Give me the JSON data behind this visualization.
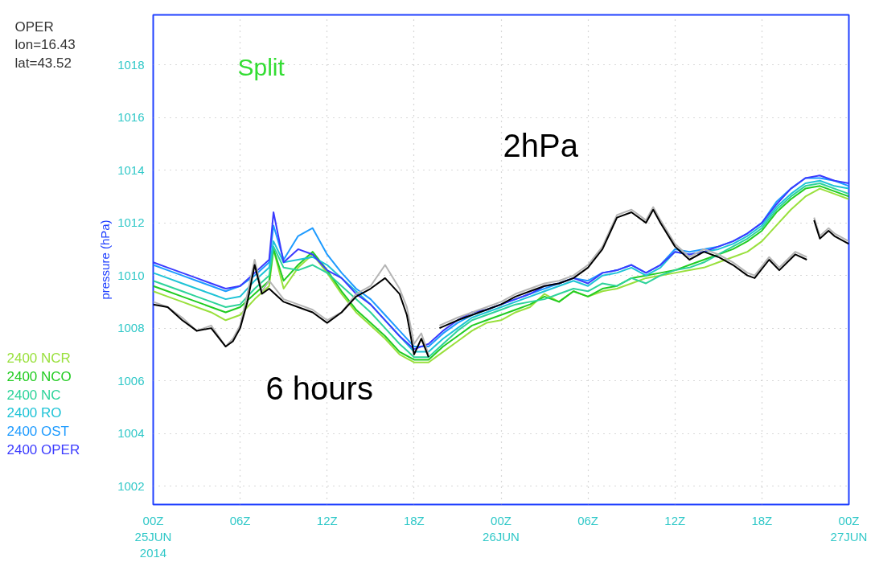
{
  "chart_data": {
    "type": "line",
    "title": "Split",
    "ylabel": "pressure (hPa)",
    "annotations": [
      "OPER",
      "lon=16.43",
      "lat=43.52",
      "2hPa",
      "6 hours"
    ],
    "x": [
      "2014-06-25T00:00",
      "2014-06-25T01:00",
      "2014-06-25T02:00",
      "2014-06-25T03:00",
      "2014-06-25T04:00",
      "2014-06-25T05:00",
      "2014-06-25T06:00",
      "2014-06-25T07:00",
      "2014-06-25T08:00",
      "2014-06-25T08:18",
      "2014-06-25T09:00",
      "2014-06-25T10:00",
      "2014-06-25T11:00",
      "2014-06-25T12:00",
      "2014-06-25T13:00",
      "2014-06-25T14:00",
      "2014-06-25T15:00",
      "2014-06-25T16:00",
      "2014-06-25T17:00",
      "2014-06-25T18:00",
      "2014-06-25T19:00",
      "2014-06-25T20:00",
      "2014-06-25T21:00",
      "2014-06-25T22:00",
      "2014-06-25T23:00",
      "2014-06-26T00:00",
      "2014-06-26T01:00",
      "2014-06-26T02:00",
      "2014-06-26T03:00",
      "2014-06-26T04:00",
      "2014-06-26T05:00",
      "2014-06-26T06:00",
      "2014-06-26T07:00",
      "2014-06-26T08:00",
      "2014-06-26T09:00",
      "2014-06-26T10:00",
      "2014-06-26T11:00",
      "2014-06-26T12:00",
      "2014-06-26T13:00",
      "2014-06-26T14:00",
      "2014-06-26T15:00",
      "2014-06-26T16:00",
      "2014-06-26T17:00",
      "2014-06-26T18:00",
      "2014-06-26T19:00",
      "2014-06-26T20:00",
      "2014-06-26T21:00",
      "2014-06-26T22:00",
      "2014-06-26T23:00",
      "2014-06-27T00:00"
    ],
    "xlim": [
      "2014-06-25T00:00",
      "2014-06-27T00:00"
    ],
    "xticks": [
      {
        "value": "2014-06-25T00:00",
        "label": "00Z\n25JUN\n2014"
      },
      {
        "value": "2014-06-25T06:00",
        "label": "06Z"
      },
      {
        "value": "2014-06-25T12:00",
        "label": "12Z"
      },
      {
        "value": "2014-06-25T18:00",
        "label": "18Z"
      },
      {
        "value": "2014-06-26T00:00",
        "label": "00Z\n26JUN"
      },
      {
        "value": "2014-06-26T06:00",
        "label": "06Z"
      },
      {
        "value": "2014-06-26T12:00",
        "label": "12Z"
      },
      {
        "value": "2014-06-26T18:00",
        "label": "18Z"
      },
      {
        "value": "2014-06-27T00:00",
        "label": "00Z\n27JUN"
      }
    ],
    "ylim": [
      1001.3,
      1019.9
    ],
    "yticks": [
      1002,
      1004,
      1006,
      1008,
      1010,
      1012,
      1014,
      1016,
      1018
    ],
    "grid": true,
    "line_style": "solid",
    "series": [
      {
        "name": "2400 NCR",
        "color": "#99e03c",
        "values": [
          1009.4,
          1009.2,
          1009.0,
          1008.8,
          1008.6,
          1008.3,
          1008.5,
          1009.1,
          1009.6,
          1011.0,
          1009.5,
          1010.3,
          1010.8,
          1010.1,
          1009.3,
          1008.6,
          1008.1,
          1007.6,
          1007.0,
          1006.7,
          1006.7,
          1007.1,
          1007.5,
          1007.9,
          1008.2,
          1008.3,
          1008.6,
          1008.8,
          1009.3,
          1009.0,
          1009.4,
          1009.2,
          1009.4,
          1009.5,
          1009.7,
          1009.9,
          1010.0,
          1010.1,
          1010.2,
          1010.3,
          1010.5,
          1010.7,
          1010.9,
          1011.3,
          1011.9,
          1012.5,
          1013.0,
          1013.3,
          1013.1,
          1012.9
        ]
      },
      {
        "name": "2400 NCO",
        "color": "#22cc22",
        "values": [
          1009.6,
          1009.4,
          1009.2,
          1009.0,
          1008.8,
          1008.6,
          1008.8,
          1009.3,
          1009.8,
          1011.0,
          1009.8,
          1010.4,
          1010.9,
          1010.2,
          1009.4,
          1008.7,
          1008.2,
          1007.7,
          1007.1,
          1006.8,
          1006.8,
          1007.3,
          1007.7,
          1008.1,
          1008.3,
          1008.5,
          1008.7,
          1008.9,
          1009.2,
          1009.0,
          1009.4,
          1009.2,
          1009.5,
          1009.6,
          1009.9,
          1010.0,
          1010.1,
          1010.2,
          1010.4,
          1010.6,
          1010.8,
          1011.0,
          1011.3,
          1011.7,
          1012.4,
          1012.9,
          1013.3,
          1013.4,
          1013.2,
          1013.0
        ]
      },
      {
        "name": "2400 NC",
        "color": "#2dd39a",
        "values": [
          1009.8,
          1009.6,
          1009.4,
          1009.2,
          1009.0,
          1008.8,
          1008.9,
          1009.5,
          1010.0,
          1011.1,
          1010.3,
          1010.2,
          1010.4,
          1010.1,
          1009.6,
          1009.1,
          1008.6,
          1008.0,
          1007.4,
          1006.9,
          1006.9,
          1007.4,
          1007.9,
          1008.3,
          1008.5,
          1008.7,
          1008.9,
          1009.0,
          1009.1,
          1009.3,
          1009.5,
          1009.4,
          1009.7,
          1009.6,
          1009.9,
          1009.7,
          1010.0,
          1010.2,
          1010.3,
          1010.5,
          1010.8,
          1011.1,
          1011.4,
          1011.8,
          1012.5,
          1013.0,
          1013.4,
          1013.5,
          1013.3,
          1013.1
        ]
      },
      {
        "name": "2400 RO",
        "color": "#1ec3d6",
        "values": [
          1010.1,
          1009.9,
          1009.7,
          1009.5,
          1009.3,
          1009.1,
          1009.2,
          1009.8,
          1010.3,
          1011.3,
          1010.5,
          1010.6,
          1010.7,
          1010.4,
          1009.9,
          1009.4,
          1008.9,
          1008.3,
          1007.7,
          1007.1,
          1007.1,
          1007.6,
          1008.0,
          1008.4,
          1008.6,
          1008.8,
          1009.0,
          1009.2,
          1009.4,
          1009.6,
          1009.8,
          1009.6,
          1010.0,
          1010.1,
          1010.3,
          1010.0,
          1010.3,
          1010.9,
          1010.8,
          1010.9,
          1011.0,
          1011.2,
          1011.5,
          1011.9,
          1012.6,
          1013.1,
          1013.5,
          1013.6,
          1013.4,
          1013.3
        ]
      },
      {
        "name": "2400 OST",
        "color": "#1e9bff",
        "values": [
          1010.4,
          1010.2,
          1010.0,
          1009.8,
          1009.6,
          1009.4,
          1009.6,
          1010.0,
          1010.5,
          1011.9,
          1010.6,
          1011.5,
          1011.8,
          1010.8,
          1010.1,
          1009.5,
          1009.1,
          1008.5,
          1007.9,
          1007.3,
          1007.3,
          1007.8,
          1008.2,
          1008.5,
          1008.7,
          1008.9,
          1009.1,
          1009.3,
          1009.5,
          1009.7,
          1009.9,
          1009.8,
          1010.1,
          1010.2,
          1010.4,
          1010.1,
          1010.4,
          1011.0,
          1010.9,
          1011.0,
          1011.1,
          1011.3,
          1011.6,
          1012.0,
          1012.8,
          1013.3,
          1013.7,
          1013.7,
          1013.6,
          1013.4
        ]
      },
      {
        "name": "2400 OPER",
        "color": "#3b3bff",
        "values": [
          1010.5,
          1010.3,
          1010.1,
          1009.9,
          1009.7,
          1009.5,
          1009.6,
          1010.1,
          1010.6,
          1012.4,
          1010.5,
          1011.0,
          1010.8,
          1010.2,
          1009.9,
          1009.3,
          1008.9,
          1008.3,
          1007.7,
          1007.2,
          1007.4,
          1007.9,
          1008.3,
          1008.6,
          1008.7,
          1008.9,
          1009.1,
          1009.3,
          1009.6,
          1009.7,
          1009.9,
          1009.7,
          1010.1,
          1010.2,
          1010.4,
          1010.1,
          1010.4,
          1010.9,
          1010.8,
          1010.9,
          1011.1,
          1011.3,
          1011.6,
          1012.0,
          1012.7,
          1013.3,
          1013.7,
          1013.8,
          1013.6,
          1013.5
        ]
      },
      {
        "color": "#b4b4b4",
        "x": [
          "2014-06-25T00:00",
          "2014-06-25T01:00",
          "2014-06-25T02:00",
          "2014-06-25T03:00",
          "2014-06-25T04:00",
          "2014-06-25T05:00",
          "2014-06-25T05:30",
          "2014-06-25T06:00",
          "2014-06-25T06:30",
          "2014-06-25T07:00",
          "2014-06-25T07:30",
          "2014-06-25T08:00",
          "2014-06-25T09:00",
          "2014-06-25T10:00",
          "2014-06-25T11:00",
          "2014-06-25T12:00",
          "2014-06-25T13:00",
          "2014-06-25T14:00",
          "2014-06-25T15:00",
          "2014-06-25T16:00",
          "2014-06-25T17:00",
          "2014-06-25T17:30",
          "2014-06-25T18:00",
          "2014-06-25T18:30",
          "2014-06-25T19:00",
          "2014-06-25T19:30",
          "2014-06-25T19:45",
          "2014-06-25T21:00",
          "2014-06-25T22:00",
          "2014-06-25T23:00",
          "2014-06-26T00:00",
          "2014-06-26T01:00",
          "2014-06-26T02:00",
          "2014-06-26T03:00",
          "2014-06-26T04:00",
          "2014-06-26T05:00",
          "2014-06-26T06:00",
          "2014-06-26T07:00",
          "2014-06-26T08:00",
          "2014-06-26T09:00",
          "2014-06-26T10:00",
          "2014-06-26T10:30",
          "2014-06-26T11:00",
          "2014-06-26T12:00",
          "2014-06-26T13:00",
          "2014-06-26T14:00",
          "2014-06-26T15:00",
          "2014-06-26T16:00",
          "2014-06-26T17:00",
          "2014-06-26T17:30",
          "2014-06-26T18:30",
          "2014-06-26T19:12",
          "2014-06-26T20:18",
          "2014-06-26T21:06",
          "2014-06-26T21:24",
          "2014-06-26T21:36",
          "2014-06-26T22:00",
          "2014-06-26T22:36",
          "2014-06-26T23:00",
          "2014-06-27T00:00"
        ],
        "values": [
          1009.0,
          1008.8,
          1008.4,
          1007.9,
          1008.1,
          1007.3,
          1007.6,
          1008.1,
          1009.3,
          1010.6,
          1009.4,
          1009.8,
          1009.1,
          1008.9,
          1008.7,
          1008.3,
          1008.6,
          1009.3,
          1009.6,
          1010.4,
          1009.5,
          1008.8,
          1007.4,
          1007.8,
          1007.0,
          null,
          1008.1,
          1008.4,
          1008.6,
          1008.8,
          1009.0,
          1009.3,
          1009.5,
          1009.7,
          1009.8,
          1010.0,
          1010.4,
          1011.1,
          1012.3,
          1012.5,
          1012.1,
          1012.6,
          1012.1,
          1011.2,
          1010.7,
          1011.0,
          1010.8,
          1010.5,
          1010.1,
          1010.0,
          1010.7,
          1010.3,
          1010.9,
          1010.7,
          null,
          1012.2,
          1011.5,
          1011.8,
          1011.6,
          1011.3
        ]
      },
      {
        "color": "#000000",
        "x": [
          "2014-06-25T00:00",
          "2014-06-25T01:00",
          "2014-06-25T02:00",
          "2014-06-25T03:00",
          "2014-06-25T04:00",
          "2014-06-25T05:00",
          "2014-06-25T05:30",
          "2014-06-25T06:00",
          "2014-06-25T06:30",
          "2014-06-25T07:00",
          "2014-06-25T07:30",
          "2014-06-25T08:00",
          "2014-06-25T09:00",
          "2014-06-25T10:00",
          "2014-06-25T11:00",
          "2014-06-25T12:00",
          "2014-06-25T13:00",
          "2014-06-25T14:00",
          "2014-06-25T15:00",
          "2014-06-25T16:00",
          "2014-06-25T17:00",
          "2014-06-25T17:30",
          "2014-06-25T18:00",
          "2014-06-25T18:30",
          "2014-06-25T19:00",
          "2014-06-25T19:30",
          "2014-06-25T19:45",
          "2014-06-25T21:00",
          "2014-06-25T22:00",
          "2014-06-25T23:00",
          "2014-06-26T00:00",
          "2014-06-26T01:00",
          "2014-06-26T02:00",
          "2014-06-26T03:00",
          "2014-06-26T04:00",
          "2014-06-26T05:00",
          "2014-06-26T06:00",
          "2014-06-26T07:00",
          "2014-06-26T08:00",
          "2014-06-26T09:00",
          "2014-06-26T10:00",
          "2014-06-26T10:30",
          "2014-06-26T11:00",
          "2014-06-26T12:00",
          "2014-06-26T13:00",
          "2014-06-26T14:00",
          "2014-06-26T15:00",
          "2014-06-26T16:00",
          "2014-06-26T17:00",
          "2014-06-26T17:30",
          "2014-06-26T18:30",
          "2014-06-26T19:12",
          "2014-06-26T20:18",
          "2014-06-26T21:06",
          "2014-06-26T21:24",
          "2014-06-26T21:36",
          "2014-06-26T22:00",
          "2014-06-26T22:36",
          "2014-06-26T23:00",
          "2014-06-27T00:00"
        ],
        "values": [
          1008.9,
          1008.8,
          1008.3,
          1007.9,
          1008.0,
          1007.3,
          1007.5,
          1008.0,
          1009.0,
          1010.4,
          1009.3,
          1009.5,
          1009.0,
          1008.8,
          1008.6,
          1008.2,
          1008.6,
          1009.2,
          1009.5,
          1009.9,
          1009.3,
          1008.5,
          1007.0,
          1007.6,
          1006.9,
          null,
          1008.0,
          1008.3,
          1008.5,
          1008.7,
          1008.9,
          1009.2,
          1009.4,
          1009.6,
          1009.7,
          1009.9,
          1010.3,
          1011.0,
          1012.2,
          1012.4,
          1012.0,
          1012.5,
          1012.0,
          1011.1,
          1010.6,
          1010.9,
          1010.7,
          1010.4,
          1010.0,
          1009.9,
          1010.6,
          1010.2,
          1010.8,
          1010.6,
          null,
          1012.1,
          1011.4,
          1011.7,
          1011.5,
          1011.2
        ]
      }
    ]
  }
}
